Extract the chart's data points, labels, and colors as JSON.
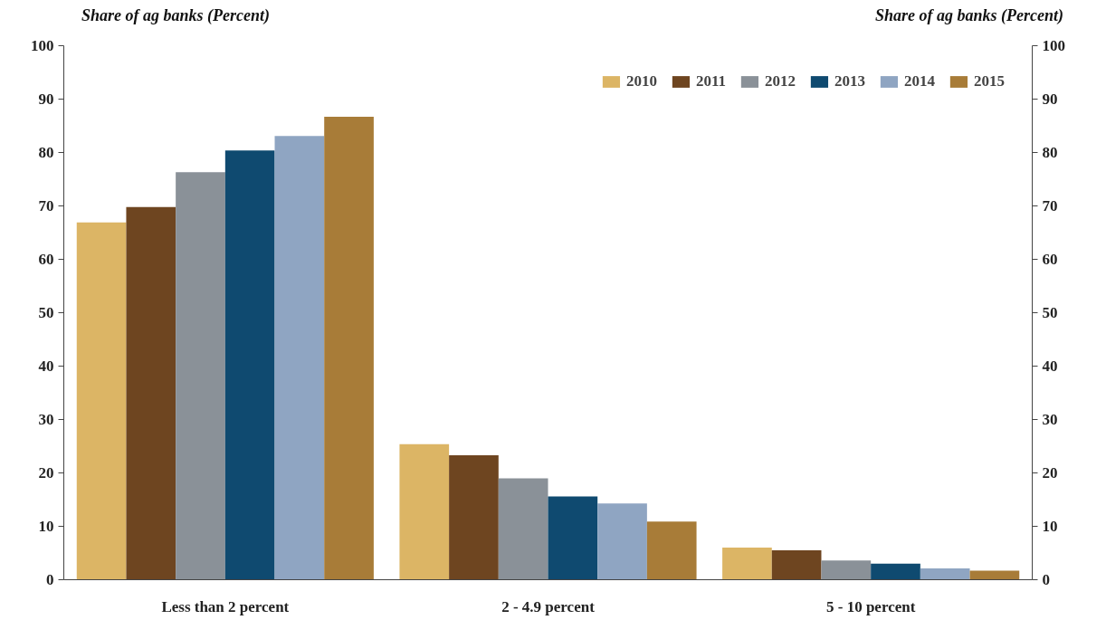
{
  "chart_data": {
    "type": "bar",
    "ylabel": "Share of ag banks (Percent)",
    "y2label": "Share of ag banks (Percent)",
    "categories": [
      "Less than 2 percent",
      "2 - 4.9 percent",
      "5 - 10 percent"
    ],
    "series": [
      {
        "name": "2010",
        "color": "#dcb565",
        "values": [
          66.9,
          25.4,
          6.0
        ]
      },
      {
        "name": "2011",
        "color": "#6e4520",
        "values": [
          69.8,
          23.3,
          5.5
        ]
      },
      {
        "name": "2012",
        "color": "#8a9198",
        "values": [
          76.3,
          19.0,
          3.6
        ]
      },
      {
        "name": "2013",
        "color": "#0f4a70",
        "values": [
          80.4,
          15.6,
          3.0
        ]
      },
      {
        "name": "2014",
        "color": "#8fa5c2",
        "values": [
          83.1,
          14.3,
          2.1
        ]
      },
      {
        "name": "2015",
        "color": "#a87c38",
        "values": [
          86.7,
          10.9,
          1.7
        ]
      }
    ],
    "ylim": [
      0,
      100
    ],
    "yticks": [
      0,
      10,
      20,
      30,
      40,
      50,
      60,
      70,
      80,
      90,
      100
    ],
    "y2lim": [
      0,
      100
    ],
    "y2ticks": [
      0,
      10,
      20,
      30,
      40,
      50,
      60,
      70,
      80,
      90,
      100
    ],
    "grid": false,
    "legend": "top right"
  }
}
